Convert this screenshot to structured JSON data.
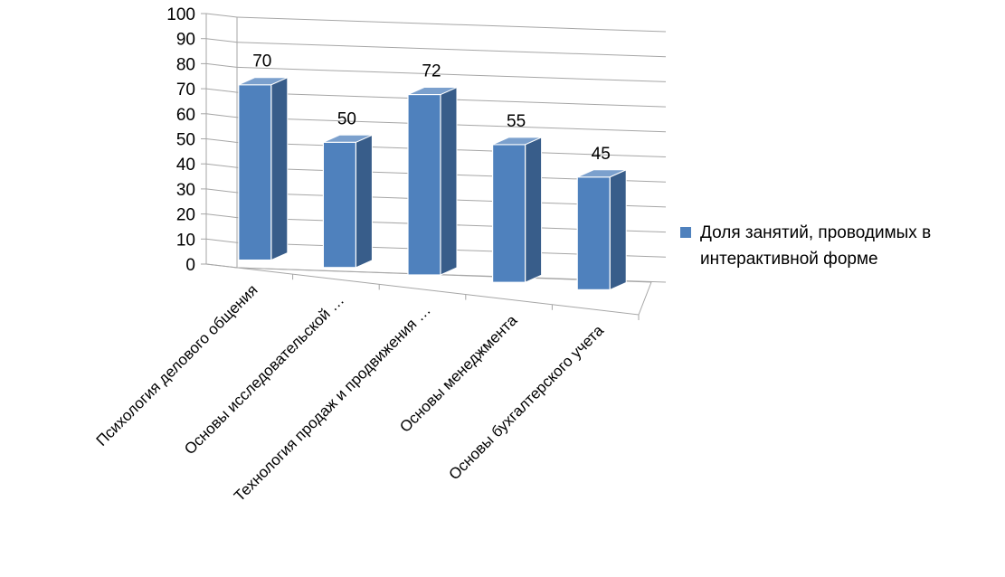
{
  "chart_data": {
    "type": "bar",
    "categories": [
      "Психология делового общения",
      "Основы исследовательской …",
      "Технология продаж и продвижения …",
      "Основы менеджмента",
      "Основы бухгалтерского учета"
    ],
    "series": [
      {
        "name": "Доля занятий, проводимых в интерактивной форме",
        "values": [
          70,
          50,
          72,
          55,
          45
        ]
      }
    ],
    "ylim": [
      0,
      100
    ],
    "yticks": [
      0,
      10,
      20,
      30,
      40,
      50,
      60,
      70,
      80,
      90,
      100
    ],
    "data_labels": [
      "70",
      "50",
      "72",
      "55",
      "45"
    ],
    "grid": true,
    "legend_position": "right",
    "bar_color": "#4f81bd",
    "bar_side_color": "#385d8a",
    "bar_top_color": "#7ba0cd"
  },
  "legend": {
    "label": "Доля занятий, проводимых в интерактивной форме"
  }
}
